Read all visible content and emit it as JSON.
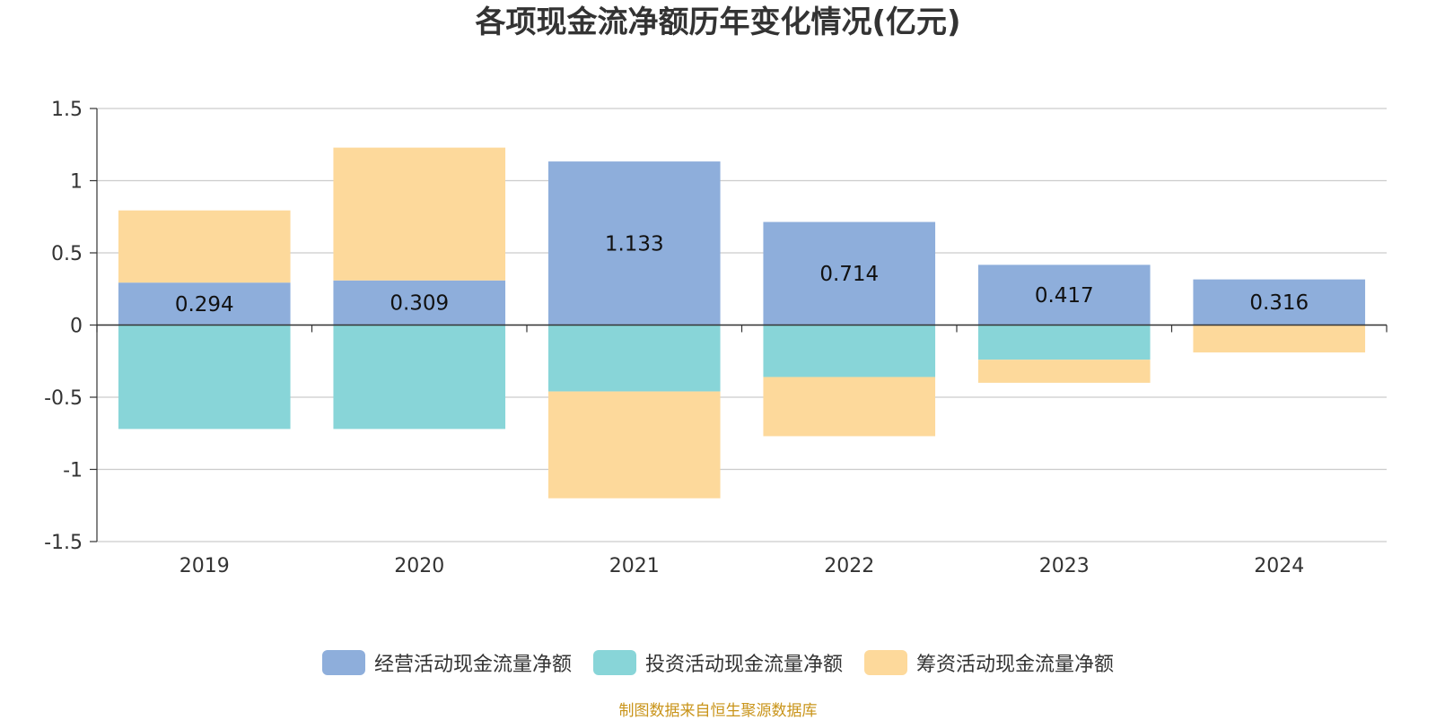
{
  "chart_data": {
    "type": "bar",
    "stacked": true,
    "title": "各项现金流净额历年变化情况(亿元)",
    "categories": [
      "2019",
      "2020",
      "2021",
      "2022",
      "2023",
      "2024"
    ],
    "series": [
      {
        "name": "经营活动现金流量净额",
        "color": "#8eaedb",
        "values": [
          0.294,
          0.309,
          1.133,
          0.714,
          0.417,
          0.316
        ],
        "labels": [
          "0.294",
          "0.309",
          "1.133",
          "0.714",
          "0.417",
          "0.316"
        ]
      },
      {
        "name": "投资活动现金流量净额",
        "color": "#88d5d8",
        "values": [
          -0.72,
          -0.72,
          -0.46,
          -0.36,
          -0.24,
          0.0
        ]
      },
      {
        "name": "筹资活动现金流量净额",
        "color": "#fdd99b",
        "values": [
          0.5,
          0.92,
          -0.74,
          -0.41,
          -0.16,
          -0.19
        ]
      }
    ],
    "ylim": [
      -1.5,
      1.5
    ],
    "yticks": [
      "1.5",
      "1",
      "0.5",
      "0",
      "-0.5",
      "-1",
      "-1.5"
    ],
    "grid": true,
    "legend_position": "bottom"
  },
  "source": "制图数据来自恒生聚源数据库"
}
